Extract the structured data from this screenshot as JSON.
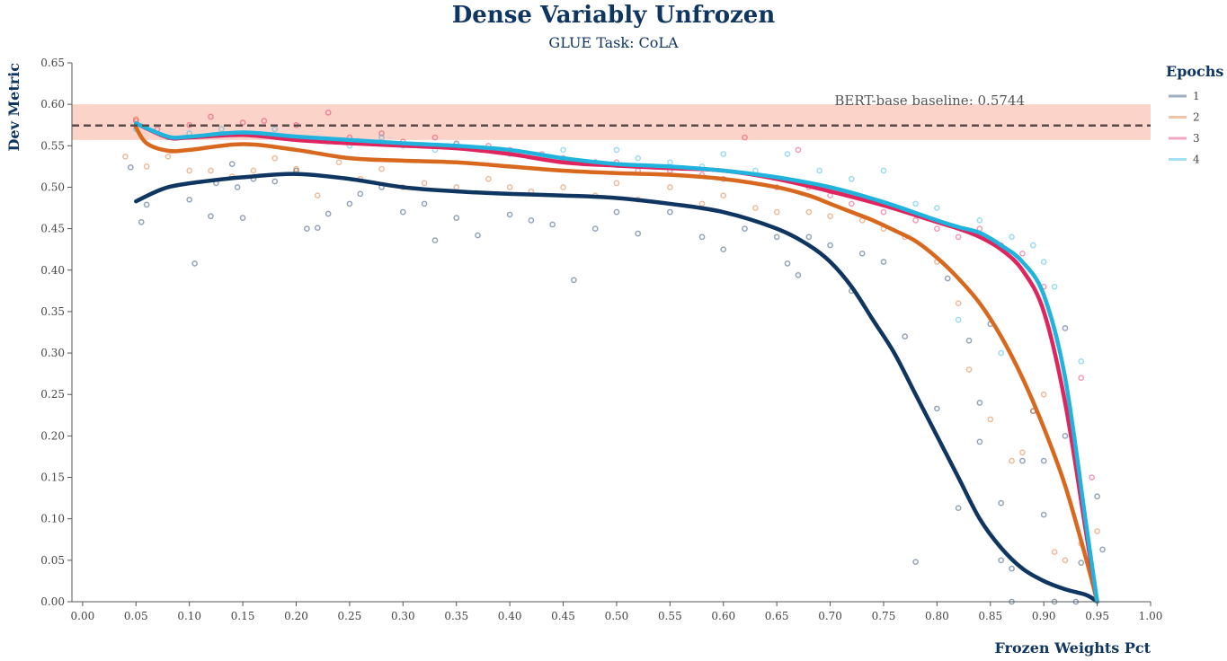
{
  "chart_data": {
    "type": "scatter",
    "title": "Dense Variably Unfrozen",
    "subtitle": "GLUE Task: CoLA",
    "xlabel": "Frozen Weights Pct",
    "ylabel": "Dev Metric",
    "xlim": [
      -0.01,
      1.0
    ],
    "ylim": [
      0,
      0.65
    ],
    "x_ticks": [
      "0.00",
      "0.05",
      "0.10",
      "0.15",
      "0.20",
      "0.25",
      "0.30",
      "0.35",
      "0.40",
      "0.45",
      "0.50",
      "0.55",
      "0.60",
      "0.65",
      "0.70",
      "0.75",
      "0.80",
      "0.85",
      "0.90",
      "0.95",
      "1.00"
    ],
    "y_ticks": [
      "0.00",
      "0.05",
      "0.10",
      "0.15",
      "0.20",
      "0.25",
      "0.30",
      "0.35",
      "0.40",
      "0.45",
      "0.50",
      "0.55",
      "0.60",
      "0.65"
    ],
    "baseline": {
      "label": "BERT-base baseline: 0.5744",
      "value": 0.5744,
      "band": [
        0.557,
        0.6
      ]
    },
    "legend": {
      "title": "Epochs",
      "position": "right"
    },
    "grid": false,
    "series": [
      {
        "name": "1",
        "color": "#0f3561",
        "trend": [
          [
            0.05,
            0.483
          ],
          [
            0.08,
            0.5
          ],
          [
            0.12,
            0.508
          ],
          [
            0.15,
            0.512
          ],
          [
            0.2,
            0.516
          ],
          [
            0.25,
            0.51
          ],
          [
            0.3,
            0.5
          ],
          [
            0.35,
            0.495
          ],
          [
            0.4,
            0.492
          ],
          [
            0.45,
            0.49
          ],
          [
            0.5,
            0.487
          ],
          [
            0.55,
            0.48
          ],
          [
            0.6,
            0.47
          ],
          [
            0.65,
            0.45
          ],
          [
            0.68,
            0.43
          ],
          [
            0.7,
            0.41
          ],
          [
            0.72,
            0.38
          ],
          [
            0.74,
            0.34
          ],
          [
            0.76,
            0.3
          ],
          [
            0.78,
            0.25
          ],
          [
            0.8,
            0.2
          ],
          [
            0.82,
            0.15
          ],
          [
            0.84,
            0.1
          ],
          [
            0.86,
            0.065
          ],
          [
            0.88,
            0.04
          ],
          [
            0.9,
            0.025
          ],
          [
            0.92,
            0.015
          ],
          [
            0.94,
            0.008
          ],
          [
            0.95,
            0.0
          ]
        ],
        "points": [
          [
            0.045,
            0.524
          ],
          [
            0.055,
            0.458
          ],
          [
            0.06,
            0.479
          ],
          [
            0.1,
            0.485
          ],
          [
            0.105,
            0.408
          ],
          [
            0.12,
            0.465
          ],
          [
            0.125,
            0.505
          ],
          [
            0.14,
            0.528
          ],
          [
            0.145,
            0.5
          ],
          [
            0.15,
            0.463
          ],
          [
            0.16,
            0.51
          ],
          [
            0.18,
            0.507
          ],
          [
            0.2,
            0.52
          ],
          [
            0.21,
            0.45
          ],
          [
            0.22,
            0.451
          ],
          [
            0.23,
            0.468
          ],
          [
            0.25,
            0.48
          ],
          [
            0.26,
            0.492
          ],
          [
            0.28,
            0.5
          ],
          [
            0.3,
            0.47
          ],
          [
            0.32,
            0.48
          ],
          [
            0.33,
            0.436
          ],
          [
            0.35,
            0.463
          ],
          [
            0.37,
            0.442
          ],
          [
            0.4,
            0.467
          ],
          [
            0.42,
            0.46
          ],
          [
            0.44,
            0.455
          ],
          [
            0.46,
            0.388
          ],
          [
            0.48,
            0.45
          ],
          [
            0.5,
            0.47
          ],
          [
            0.52,
            0.444
          ],
          [
            0.55,
            0.47
          ],
          [
            0.58,
            0.44
          ],
          [
            0.6,
            0.425
          ],
          [
            0.62,
            0.45
          ],
          [
            0.65,
            0.44
          ],
          [
            0.66,
            0.408
          ],
          [
            0.67,
            0.394
          ],
          [
            0.68,
            0.44
          ],
          [
            0.7,
            0.43
          ],
          [
            0.72,
            0.375
          ],
          [
            0.73,
            0.42
          ],
          [
            0.75,
            0.41
          ],
          [
            0.77,
            0.32
          ],
          [
            0.78,
            0.048
          ],
          [
            0.8,
            0.233
          ],
          [
            0.81,
            0.39
          ],
          [
            0.82,
            0.113
          ],
          [
            0.83,
            0.315
          ],
          [
            0.84,
            0.24
          ],
          [
            0.84,
            0.193
          ],
          [
            0.85,
            0.335
          ],
          [
            0.86,
            0.119
          ],
          [
            0.86,
            0.05
          ],
          [
            0.87,
            0.0
          ],
          [
            0.87,
            0.04
          ],
          [
            0.88,
            0.17
          ],
          [
            0.89,
            0.23
          ],
          [
            0.9,
            0.105
          ],
          [
            0.9,
            0.17
          ],
          [
            0.91,
            0.0
          ],
          [
            0.92,
            0.2
          ],
          [
            0.93,
            0.0
          ],
          [
            0.935,
            0.047
          ],
          [
            0.95,
            0.127
          ],
          [
            0.955,
            0.063
          ]
        ]
      },
      {
        "name": "2",
        "color": "#d9681f",
        "trend": [
          [
            0.05,
            0.572
          ],
          [
            0.06,
            0.553
          ],
          [
            0.08,
            0.544
          ],
          [
            0.1,
            0.545
          ],
          [
            0.15,
            0.552
          ],
          [
            0.2,
            0.545
          ],
          [
            0.25,
            0.535
          ],
          [
            0.3,
            0.532
          ],
          [
            0.35,
            0.53
          ],
          [
            0.4,
            0.525
          ],
          [
            0.45,
            0.52
          ],
          [
            0.5,
            0.517
          ],
          [
            0.55,
            0.515
          ],
          [
            0.6,
            0.51
          ],
          [
            0.65,
            0.5
          ],
          [
            0.68,
            0.49
          ],
          [
            0.7,
            0.48
          ],
          [
            0.72,
            0.47
          ],
          [
            0.74,
            0.46
          ],
          [
            0.76,
            0.448
          ],
          [
            0.78,
            0.435
          ],
          [
            0.8,
            0.415
          ],
          [
            0.82,
            0.39
          ],
          [
            0.84,
            0.36
          ],
          [
            0.86,
            0.32
          ],
          [
            0.88,
            0.27
          ],
          [
            0.9,
            0.21
          ],
          [
            0.92,
            0.14
          ],
          [
            0.94,
            0.05
          ],
          [
            0.95,
            0.0
          ]
        ],
        "points": [
          [
            0.04,
            0.537
          ],
          [
            0.05,
            0.582
          ],
          [
            0.06,
            0.525
          ],
          [
            0.08,
            0.537
          ],
          [
            0.1,
            0.52
          ],
          [
            0.12,
            0.52
          ],
          [
            0.14,
            0.513
          ],
          [
            0.16,
            0.52
          ],
          [
            0.18,
            0.535
          ],
          [
            0.2,
            0.522
          ],
          [
            0.22,
            0.49
          ],
          [
            0.24,
            0.53
          ],
          [
            0.26,
            0.51
          ],
          [
            0.28,
            0.522
          ],
          [
            0.3,
            0.5
          ],
          [
            0.32,
            0.505
          ],
          [
            0.35,
            0.5
          ],
          [
            0.38,
            0.51
          ],
          [
            0.4,
            0.5
          ],
          [
            0.42,
            0.495
          ],
          [
            0.45,
            0.5
          ],
          [
            0.48,
            0.49
          ],
          [
            0.5,
            0.505
          ],
          [
            0.52,
            0.485
          ],
          [
            0.55,
            0.5
          ],
          [
            0.58,
            0.48
          ],
          [
            0.6,
            0.49
          ],
          [
            0.63,
            0.475
          ],
          [
            0.65,
            0.47
          ],
          [
            0.68,
            0.47
          ],
          [
            0.7,
            0.465
          ],
          [
            0.73,
            0.46
          ],
          [
            0.75,
            0.45
          ],
          [
            0.77,
            0.44
          ],
          [
            0.8,
            0.41
          ],
          [
            0.82,
            0.36
          ],
          [
            0.83,
            0.28
          ],
          [
            0.85,
            0.22
          ],
          [
            0.87,
            0.17
          ],
          [
            0.88,
            0.18
          ],
          [
            0.89,
            0.23
          ],
          [
            0.9,
            0.25
          ],
          [
            0.91,
            0.06
          ],
          [
            0.92,
            0.05
          ],
          [
            0.935,
            0.07
          ],
          [
            0.95,
            0.085
          ]
        ]
      },
      {
        "name": "3",
        "color": "#e0245e",
        "trend": [
          [
            0.05,
            0.577
          ],
          [
            0.08,
            0.56
          ],
          [
            0.1,
            0.56
          ],
          [
            0.15,
            0.563
          ],
          [
            0.2,
            0.557
          ],
          [
            0.25,
            0.553
          ],
          [
            0.3,
            0.55
          ],
          [
            0.35,
            0.547
          ],
          [
            0.4,
            0.54
          ],
          [
            0.45,
            0.53
          ],
          [
            0.5,
            0.526
          ],
          [
            0.55,
            0.523
          ],
          [
            0.6,
            0.52
          ],
          [
            0.65,
            0.51
          ],
          [
            0.7,
            0.495
          ],
          [
            0.75,
            0.478
          ],
          [
            0.8,
            0.458
          ],
          [
            0.82,
            0.45
          ],
          [
            0.84,
            0.44
          ],
          [
            0.86,
            0.425
          ],
          [
            0.88,
            0.4
          ],
          [
            0.9,
            0.35
          ],
          [
            0.92,
            0.24
          ],
          [
            0.94,
            0.08
          ],
          [
            0.95,
            0.0
          ]
        ],
        "points": [
          [
            0.05,
            0.58
          ],
          [
            0.07,
            0.57
          ],
          [
            0.1,
            0.575
          ],
          [
            0.12,
            0.585
          ],
          [
            0.15,
            0.578
          ],
          [
            0.17,
            0.58
          ],
          [
            0.2,
            0.575
          ],
          [
            0.23,
            0.59
          ],
          [
            0.25,
            0.56
          ],
          [
            0.28,
            0.565
          ],
          [
            0.3,
            0.555
          ],
          [
            0.33,
            0.56
          ],
          [
            0.35,
            0.553
          ],
          [
            0.38,
            0.55
          ],
          [
            0.4,
            0.545
          ],
          [
            0.43,
            0.54
          ],
          [
            0.45,
            0.535
          ],
          [
            0.48,
            0.53
          ],
          [
            0.5,
            0.53
          ],
          [
            0.52,
            0.52
          ],
          [
            0.55,
            0.52
          ],
          [
            0.58,
            0.515
          ],
          [
            0.6,
            0.51
          ],
          [
            0.62,
            0.56
          ],
          [
            0.65,
            0.5
          ],
          [
            0.67,
            0.545
          ],
          [
            0.68,
            0.5
          ],
          [
            0.7,
            0.49
          ],
          [
            0.72,
            0.48
          ],
          [
            0.75,
            0.47
          ],
          [
            0.78,
            0.46
          ],
          [
            0.8,
            0.45
          ],
          [
            0.82,
            0.44
          ],
          [
            0.84,
            0.45
          ],
          [
            0.86,
            0.43
          ],
          [
            0.88,
            0.42
          ],
          [
            0.9,
            0.38
          ],
          [
            0.92,
            0.33
          ],
          [
            0.935,
            0.27
          ],
          [
            0.945,
            0.15
          ]
        ]
      },
      {
        "name": "4",
        "color": "#1fb3dd",
        "trend": [
          [
            0.05,
            0.577
          ],
          [
            0.08,
            0.561
          ],
          [
            0.1,
            0.561
          ],
          [
            0.15,
            0.566
          ],
          [
            0.2,
            0.561
          ],
          [
            0.25,
            0.557
          ],
          [
            0.3,
            0.553
          ],
          [
            0.35,
            0.55
          ],
          [
            0.4,
            0.545
          ],
          [
            0.45,
            0.535
          ],
          [
            0.5,
            0.528
          ],
          [
            0.55,
            0.525
          ],
          [
            0.6,
            0.52
          ],
          [
            0.65,
            0.512
          ],
          [
            0.7,
            0.5
          ],
          [
            0.75,
            0.482
          ],
          [
            0.8,
            0.46
          ],
          [
            0.82,
            0.452
          ],
          [
            0.84,
            0.445
          ],
          [
            0.86,
            0.43
          ],
          [
            0.88,
            0.41
          ],
          [
            0.9,
            0.37
          ],
          [
            0.92,
            0.27
          ],
          [
            0.94,
            0.09
          ],
          [
            0.95,
            0.0
          ]
        ],
        "points": [
          [
            0.05,
            0.57
          ],
          [
            0.08,
            0.56
          ],
          [
            0.1,
            0.565
          ],
          [
            0.13,
            0.57
          ],
          [
            0.15,
            0.565
          ],
          [
            0.18,
            0.57
          ],
          [
            0.2,
            0.56
          ],
          [
            0.23,
            0.555
          ],
          [
            0.25,
            0.55
          ],
          [
            0.28,
            0.56
          ],
          [
            0.3,
            0.55
          ],
          [
            0.33,
            0.545
          ],
          [
            0.35,
            0.552
          ],
          [
            0.38,
            0.545
          ],
          [
            0.4,
            0.54
          ],
          [
            0.43,
            0.535
          ],
          [
            0.45,
            0.545
          ],
          [
            0.48,
            0.53
          ],
          [
            0.5,
            0.545
          ],
          [
            0.52,
            0.535
          ],
          [
            0.55,
            0.53
          ],
          [
            0.58,
            0.525
          ],
          [
            0.6,
            0.54
          ],
          [
            0.63,
            0.52
          ],
          [
            0.66,
            0.54
          ],
          [
            0.69,
            0.52
          ],
          [
            0.72,
            0.51
          ],
          [
            0.75,
            0.52
          ],
          [
            0.78,
            0.48
          ],
          [
            0.8,
            0.475
          ],
          [
            0.82,
            0.34
          ],
          [
            0.84,
            0.46
          ],
          [
            0.86,
            0.3
          ],
          [
            0.87,
            0.44
          ],
          [
            0.89,
            0.43
          ],
          [
            0.9,
            0.41
          ],
          [
            0.91,
            0.38
          ],
          [
            0.92,
            0.33
          ],
          [
            0.935,
            0.29
          ]
        ]
      }
    ]
  }
}
